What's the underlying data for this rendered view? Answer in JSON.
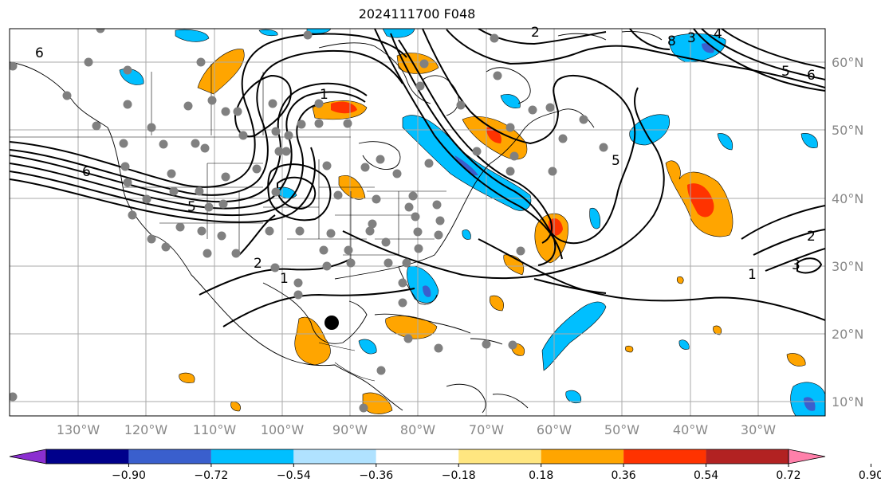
{
  "title": "2024111700 F048",
  "lon_labels": [
    "130°W",
    "120°W",
    "110°W",
    "100°W",
    "90°W",
    "80°W",
    "70°W",
    "60°W",
    "50°W",
    "40°W",
    "30°W"
  ],
  "lat_labels": [
    "60°N",
    "50°N",
    "40°N",
    "30°N",
    "20°N",
    "10°N"
  ],
  "contour_labels": [
    "6",
    "6",
    "5",
    "1",
    "2",
    "1",
    "1",
    "2",
    "3",
    "5",
    "6",
    "5",
    "2",
    "3",
    "4",
    "8"
  ],
  "colorbar": {
    "ticks": [
      "−0.90",
      "−0.72",
      "−0.54",
      "−0.36",
      "−0.18",
      "0.18",
      "0.36",
      "0.54",
      "0.72",
      "0.90"
    ],
    "colors": [
      "#8b2fd0",
      "#00008b",
      "#3a5fcd",
      "#00bfff",
      "#b0e2ff",
      "#ffffff",
      "#ffe680",
      "#ffa500",
      "#ff3300",
      "#b22222",
      "#ff80aa"
    ]
  },
  "colors": {
    "positive_light": "#ffa500",
    "positive_mid": "#ff3300",
    "negative_light": "#00bfff",
    "negative_mid": "#3a5fcd",
    "station": "#808080",
    "grid": "#aaaaaa"
  }
}
